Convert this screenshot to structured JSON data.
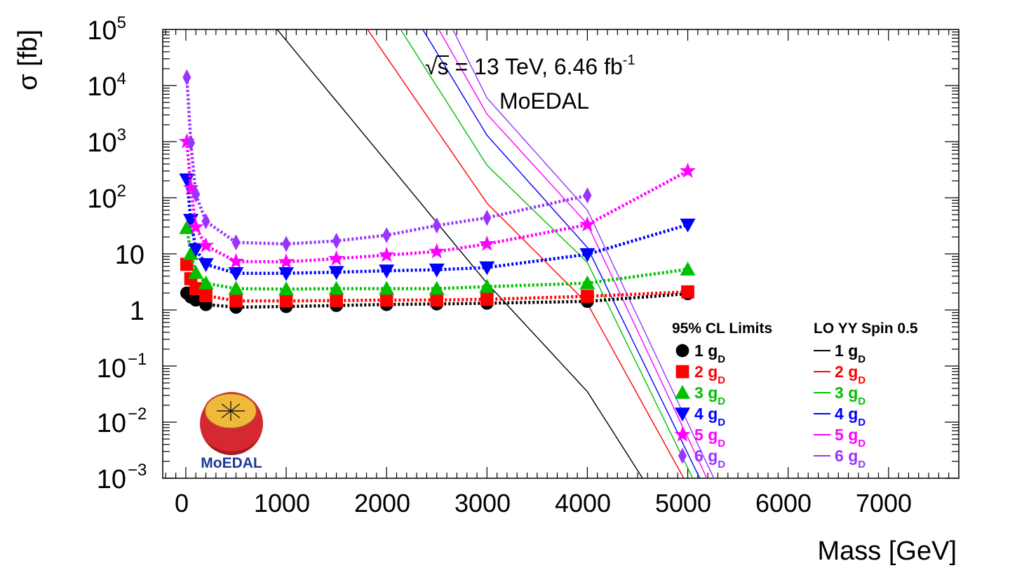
{
  "chart_data": {
    "type": "line",
    "title": "MoEDAL",
    "annotation": {
      "sqrt_symbol": "√",
      "text": "s = 13 TeV, 6.46 fb",
      "sup": "-1"
    },
    "xlabel": "Mass [GeV]",
    "ylabel": "σ [fb]",
    "xlim": [
      -230,
      7700
    ],
    "ylim": [
      0.001,
      100000
    ],
    "yscale": "log",
    "x_ticks": [
      "0",
      "1000",
      "2000",
      "3000",
      "4000",
      "5000",
      "6000",
      "7000"
    ],
    "y_ticks": [
      {
        "base": "10",
        "exp": "5"
      },
      {
        "base": "10",
        "exp": "4"
      },
      {
        "base": "10",
        "exp": "3"
      },
      {
        "base": "10",
        "exp": "2"
      },
      {
        "base": "10",
        "exp": ""
      },
      {
        "base": "1",
        "exp": ""
      },
      {
        "base": "10",
        "exp": "−1"
      },
      {
        "base": "10",
        "exp": "−2"
      },
      {
        "base": "10",
        "exp": "−3"
      }
    ],
    "legend": {
      "placement": "bottom-right",
      "limits_header": "95% CL Limits",
      "theory_header": "LO YY Spin 0.5",
      "entries": [
        {
          "num": "1",
          "sym": "g",
          "sub": "D",
          "color": "#000000",
          "marker": "circle"
        },
        {
          "num": "2",
          "sym": "g",
          "sub": "D",
          "color": "#ff0000",
          "marker": "square"
        },
        {
          "num": "3",
          "sym": "g",
          "sub": "D",
          "color": "#00c000",
          "marker": "triangle-up"
        },
        {
          "num": "4",
          "sym": "g",
          "sub": "D",
          "color": "#0000ff",
          "marker": "triangle-down"
        },
        {
          "num": "5",
          "sym": "g",
          "sub": "D",
          "color": "#ff00ff",
          "marker": "star"
        },
        {
          "num": "6",
          "sym": "g",
          "sub": "D",
          "color": "#9933ff",
          "marker": "diamond"
        }
      ]
    },
    "limit_series": [
      {
        "name": "1 gD",
        "color": "#000000",
        "marker": "circle",
        "x": [
          10,
          50,
          100,
          200,
          500,
          1000,
          1500,
          2000,
          2500,
          3000,
          4000,
          5000
        ],
        "y": [
          2.0,
          1.7,
          1.5,
          1.25,
          1.12,
          1.15,
          1.2,
          1.25,
          1.28,
          1.32,
          1.42,
          1.95
        ]
      },
      {
        "name": "2 gD",
        "color": "#ff0000",
        "marker": "square",
        "x": [
          10,
          50,
          100,
          200,
          500,
          1000,
          1500,
          2000,
          2500,
          3000,
          4000,
          5000
        ],
        "y": [
          6.5,
          3.6,
          2.4,
          1.8,
          1.45,
          1.45,
          1.47,
          1.5,
          1.5,
          1.55,
          1.75,
          2.1
        ]
      },
      {
        "name": "3 gD",
        "color": "#00c000",
        "marker": "triangle-up",
        "x": [
          10,
          50,
          100,
          200,
          500,
          1000,
          1500,
          2000,
          2500,
          3000,
          4000,
          5000
        ],
        "y": [
          29,
          10,
          4.6,
          3.0,
          2.4,
          2.35,
          2.4,
          2.4,
          2.4,
          2.6,
          3.0,
          5.3
        ]
      },
      {
        "name": "4 gD",
        "color": "#0000ff",
        "marker": "triangle-down",
        "x": [
          10,
          50,
          100,
          200,
          500,
          1000,
          1500,
          2000,
          2500,
          3000,
          4000,
          5000
        ],
        "y": [
          210,
          40,
          12,
          6.5,
          4.5,
          4.5,
          4.7,
          5.0,
          5.2,
          5.7,
          9.8,
          33
        ]
      },
      {
        "name": "5 gD",
        "color": "#ff00ff",
        "marker": "star",
        "x": [
          10,
          50,
          100,
          200,
          500,
          1000,
          1500,
          2000,
          2500,
          3000,
          4000,
          5000
        ],
        "y": [
          1000,
          150,
          30,
          14,
          7.3,
          7.2,
          8.2,
          9.5,
          11,
          15,
          33,
          300
        ]
      },
      {
        "name": "6 gD",
        "color": "#9933ff",
        "marker": "diamond",
        "x": [
          10,
          50,
          100,
          200,
          500,
          1000,
          1500,
          2000,
          2500,
          3000,
          4000
        ],
        "y": [
          14000,
          950,
          115,
          38,
          16,
          15,
          17,
          21.5,
          32,
          44,
          110
        ]
      }
    ],
    "theory_series": [
      {
        "name": "1 gD",
        "color": "#000000",
        "x": [
          910,
          3000,
          4000,
          4550
        ],
        "y": [
          100000,
          3.0,
          0.035,
          0.001
        ]
      },
      {
        "name": "2 gD",
        "color": "#ff0000",
        "x": [
          1810,
          3000,
          4000,
          4960
        ],
        "y": [
          100000,
          80,
          1.3,
          0.001
        ]
      },
      {
        "name": "3 gD",
        "color": "#00c000",
        "x": [
          2140,
          3000,
          4000,
          5050
        ],
        "y": [
          100000,
          380,
          7,
          0.001
        ]
      },
      {
        "name": "4 gD",
        "color": "#0000ff",
        "x": [
          2360,
          3000,
          4000,
          5120
        ],
        "y": [
          100000,
          1300,
          13,
          0.001
        ]
      },
      {
        "name": "5 gD",
        "color": "#ff00ff",
        "x": [
          2520,
          3000,
          4000,
          5190
        ],
        "y": [
          100000,
          3100,
          34,
          0.001
        ]
      },
      {
        "name": "6 gD",
        "color": "#9933ff",
        "x": [
          2660,
          3000,
          4000,
          5260
        ],
        "y": [
          100000,
          6000,
          60,
          0.001
        ]
      }
    ]
  },
  "logo": {
    "text": "MoEDAL",
    "name_color": "#1f3a93",
    "sphere_color": "#d62830",
    "cap_color": "#f0b93a"
  }
}
